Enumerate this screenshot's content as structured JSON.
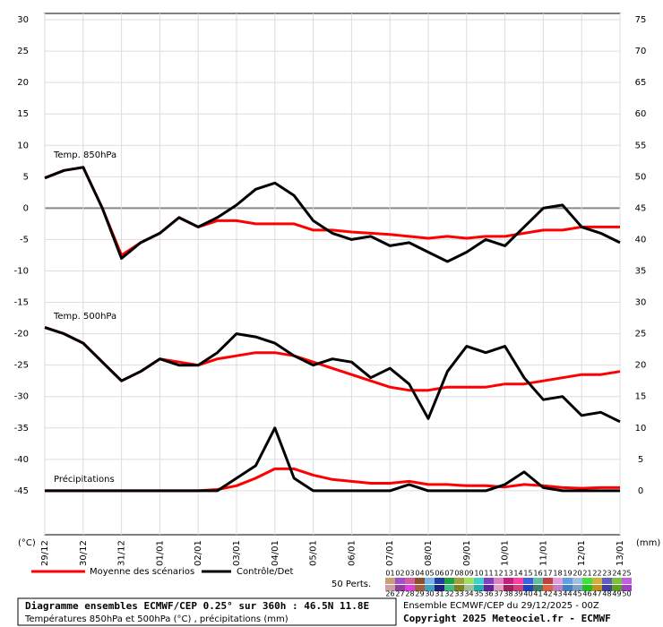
{
  "chart_data": {
    "type": "line",
    "annotations": [
      "Temp. 850hPa",
      "Temp. 500hPa",
      "Précipitations"
    ],
    "ylabel": "(°C)",
    "y2label": "(mm)",
    "x": [
      0,
      12,
      24,
      36,
      48,
      60,
      72,
      84,
      96,
      108,
      120,
      132,
      144,
      156,
      168,
      180,
      192,
      204,
      216,
      228,
      240,
      252,
      264,
      276,
      288,
      300,
      312,
      324,
      336,
      348,
      360
    ],
    "xlim": [
      0,
      360
    ],
    "xticks": [
      {
        "value": 0,
        "label": "29/12"
      },
      {
        "value": 24,
        "label": "30/12"
      },
      {
        "value": 48,
        "label": "31/12"
      },
      {
        "value": 72,
        "label": "01/01"
      },
      {
        "value": 96,
        "label": "02/01"
      },
      {
        "value": 120,
        "label": "03/01"
      },
      {
        "value": 144,
        "label": "04/01"
      },
      {
        "value": 168,
        "label": "05/01"
      },
      {
        "value": 192,
        "label": "06/01"
      },
      {
        "value": 216,
        "label": "07/01"
      },
      {
        "value": 240,
        "label": "08/01"
      },
      {
        "value": 264,
        "label": "09/01"
      },
      {
        "value": 288,
        "label": "10/01"
      },
      {
        "value": 312,
        "label": "11/01"
      },
      {
        "value": 336,
        "label": "12/01"
      },
      {
        "value": 360,
        "label": "13/01"
      }
    ],
    "ylim": [
      -52,
      31
    ],
    "yticks": [
      30,
      25,
      20,
      15,
      10,
      5,
      0,
      -5,
      -10,
      -15,
      -20,
      -25,
      -30,
      -35,
      -40,
      -45
    ],
    "y2lim": [
      -7,
      76
    ],
    "y2ticks": [
      75,
      70,
      65,
      60,
      55,
      50,
      45,
      40,
      35,
      30,
      25,
      20,
      15,
      10,
      5,
      0
    ],
    "grid": true,
    "series": [
      {
        "name": "Moyenne des scénarios",
        "color": "#ff0000",
        "values": [
          4.8,
          6,
          6.5,
          0,
          -7.5,
          -5.5,
          -4,
          -1.5,
          -3,
          -2,
          -2,
          -2.5,
          -2.5,
          -2.5,
          -3.5,
          -3.5,
          -3.8,
          -4,
          -4.2,
          -4.5,
          -4.8,
          -4.5,
          -4.8,
          -4.5,
          -4.5,
          -4,
          -3.5,
          -3.5,
          -3,
          -3,
          -3
        ]
      },
      {
        "name": "Contrôle/Det",
        "color": "#000000",
        "values": [
          4.8,
          6,
          6.5,
          0,
          -8,
          -5.5,
          -4,
          -1.5,
          -3,
          -1.5,
          0.5,
          3,
          4,
          2,
          -2,
          -4,
          -5,
          -4.5,
          -6,
          -5.5,
          -7,
          -8.5,
          -7,
          -5,
          -6,
          -3,
          0,
          0.5,
          -3,
          -4,
          -5.5
        ]
      },
      {
        "name": "Moyenne des scénarios",
        "color": "#ff0000",
        "values": [
          -19,
          -20,
          -21.5,
          -24.5,
          -27.5,
          -26,
          -24,
          -24.5,
          -25,
          -24,
          -23.5,
          -23,
          -23,
          -23.5,
          -24.5,
          -25.5,
          -26.5,
          -27.5,
          -28.5,
          -29,
          -29,
          -28.5,
          -28.5,
          -28.5,
          -28,
          -28,
          -27.5,
          -27,
          -26.5,
          -26.5,
          -26
        ]
      },
      {
        "name": "Contrôle/Det",
        "color": "#000000",
        "values": [
          -19,
          -20,
          -21.5,
          -24.5,
          -27.5,
          -26,
          -24,
          -25,
          -25,
          -23,
          -20,
          -20.5,
          -21.5,
          -23.5,
          -25,
          -24,
          -24.5,
          -27,
          -25.5,
          -28,
          -33.5,
          -26,
          -22,
          -23,
          -22,
          -27,
          -30.5,
          -30,
          -33,
          -32.5,
          -34
        ]
      },
      {
        "name": "Moyenne des scénarios",
        "color": "#ff0000",
        "axis": "y2",
        "values": [
          0,
          0,
          0,
          0,
          0,
          0,
          0,
          0,
          0,
          0.2,
          0.8,
          2,
          3.5,
          3.5,
          2.5,
          1.8,
          1.5,
          1.2,
          1.2,
          1.5,
          1,
          1,
          0.8,
          0.8,
          0.6,
          1,
          0.8,
          0.5,
          0.4,
          0.5,
          0.5
        ]
      },
      {
        "name": "Contrôle/Det",
        "color": "#000000",
        "axis": "y2",
        "values": [
          0,
          0,
          0,
          0,
          0,
          0,
          0,
          0,
          0,
          0,
          2,
          4,
          10,
          2,
          0,
          0,
          0,
          0,
          0,
          1,
          0,
          0,
          0,
          0,
          1,
          3,
          0.5,
          0,
          0,
          0,
          0
        ]
      }
    ],
    "members_label": "50 Perts.",
    "members": [
      {
        "label": "01",
        "color": "#c8a078"
      },
      {
        "label": "02",
        "color": "#a050c8"
      },
      {
        "label": "03",
        "color": "#d060a0"
      },
      {
        "label": "04",
        "color": "#8c5030"
      },
      {
        "label": "05",
        "color": "#78b4e6"
      },
      {
        "label": "06",
        "color": "#2040a0"
      },
      {
        "label": "07",
        "color": "#20a040"
      },
      {
        "label": "08",
        "color": "#a0a040"
      },
      {
        "label": "09",
        "color": "#a0e060"
      },
      {
        "label": "10",
        "color": "#40d0d0"
      },
      {
        "label": "11",
        "color": "#8040c0"
      },
      {
        "label": "12",
        "color": "#e080c0"
      },
      {
        "label": "13",
        "color": "#c02080"
      },
      {
        "label": "14",
        "color": "#ff40a0"
      },
      {
        "label": "15",
        "color": "#4060e0"
      },
      {
        "label": "16",
        "color": "#60c0a0"
      },
      {
        "label": "17",
        "color": "#c04040"
      },
      {
        "label": "18",
        "color": "#e0a0e0"
      },
      {
        "label": "19",
        "color": "#60a0e0"
      },
      {
        "label": "20",
        "color": "#a0c0e0"
      },
      {
        "label": "21",
        "color": "#40e040"
      },
      {
        "label": "22",
        "color": "#d0b040"
      },
      {
        "label": "23",
        "color": "#6060c0"
      },
      {
        "label": "24",
        "color": "#80c040"
      },
      {
        "label": "25",
        "color": "#c060e0"
      },
      {
        "label": "26",
        "color": "#d0a0a0"
      },
      {
        "label": "27",
        "color": "#9040a0"
      },
      {
        "label": "28",
        "color": "#e040e0"
      },
      {
        "label": "29",
        "color": "#a06040"
      },
      {
        "label": "30",
        "color": "#40a0c0"
      },
      {
        "label": "31",
        "color": "#202080"
      },
      {
        "label": "32",
        "color": "#40c080"
      },
      {
        "label": "33",
        "color": "#808020"
      },
      {
        "label": "34",
        "color": "#a0c0a0"
      },
      {
        "label": "35",
        "color": "#20b0b0"
      },
      {
        "label": "36",
        "color": "#6020a0"
      },
      {
        "label": "37",
        "color": "#e0a0c0"
      },
      {
        "label": "38",
        "color": "#a02060"
      },
      {
        "label": "39",
        "color": "#d04080"
      },
      {
        "label": "40",
        "color": "#2040c0"
      },
      {
        "label": "41",
        "color": "#408060"
      },
      {
        "label": "42",
        "color": "#e06040"
      },
      {
        "label": "43",
        "color": "#c080c0"
      },
      {
        "label": "44",
        "color": "#4080c0"
      },
      {
        "label": "45",
        "color": "#80a0c0"
      },
      {
        "label": "46",
        "color": "#20c020"
      },
      {
        "label": "47",
        "color": "#c09020"
      },
      {
        "label": "48",
        "color": "#4040a0"
      },
      {
        "label": "49",
        "color": "#60a020"
      },
      {
        "label": "50",
        "color": "#a040c0"
      }
    ],
    "footer": {
      "title": "Diagramme ensembles ECMWF/CEP 0.25° sur 360h : 46.5N 11.8E",
      "subtitle": "Températures 850hPa et 500hPa (°C) , précipitations (mm)",
      "run": "Ensemble ECMWF/CEP du 29/12/2025 - 00Z",
      "copyright": "Copyright 2025 Meteociel.fr - ECMWF"
    }
  }
}
